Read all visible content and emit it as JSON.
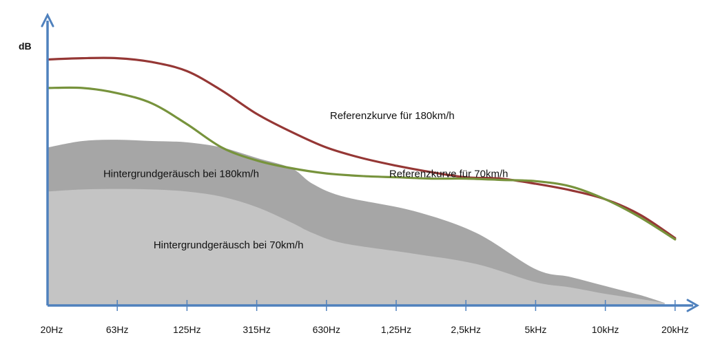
{
  "chart_data": {
    "type": "area",
    "ylabel": "dB",
    "categories": [
      "20Hz",
      "63Hz",
      "125Hz",
      "315Hz",
      "630Hz",
      "1,25Hz",
      "2,5kHz",
      "5kHz",
      "10kHz",
      "20kHz"
    ],
    "colors": {
      "axis": "#4f81bd",
      "area_180": "#a6a6a6",
      "area_70": "#c4c4c4",
      "line_180": "#953735",
      "line_70": "#77933c"
    },
    "series": [
      {
        "name": "Referenzkurve für 180km/h",
        "kind": "line",
        "x": [
          0,
          0.5,
          1,
          1.5,
          2,
          2.5,
          3,
          3.5,
          4,
          4.5,
          5,
          5.5,
          6,
          6.5,
          7,
          7.5,
          8,
          8.5,
          9
        ],
        "y": [
          95,
          95.5,
          95.5,
          94,
          90.5,
          83,
          74,
          67,
          61,
          57,
          54,
          51.5,
          49.5,
          49,
          47,
          44.5,
          41,
          35,
          26
        ]
      },
      {
        "name": "Referenzkurve für 70km/h",
        "kind": "line",
        "x": [
          0,
          0.5,
          1,
          1.5,
          2,
          2.5,
          3,
          3.5,
          4,
          4.5,
          5,
          5.5,
          6,
          6.5,
          7,
          7.5,
          8,
          8.5,
          9
        ],
        "y": [
          84,
          84,
          82,
          78,
          70,
          61,
          56,
          53,
          51,
          50,
          49.5,
          49,
          49,
          48.5,
          48,
          46,
          41,
          34,
          25.5
        ]
      },
      {
        "name": "Hintergrundgeräusch bei 180km/h",
        "kind": "area",
        "x": [
          0,
          0.5,
          1,
          1.5,
          2,
          2.5,
          3,
          3.5,
          3.8,
          4.25,
          5.25,
          6.15,
          7,
          7.5,
          8,
          8.5,
          8.85
        ],
        "y": [
          0,
          0,
          0,
          0,
          0,
          0,
          0,
          0,
          0,
          0,
          0,
          0,
          0,
          0,
          0,
          0,
          0
        ],
        "top": [
          61,
          63.5,
          64,
          63.5,
          63,
          61,
          57,
          53,
          47,
          42,
          36.5,
          28,
          14,
          11,
          7.5,
          4,
          1
        ]
      },
      {
        "name": "Hintergrundgeräusch bei 70km/h",
        "kind": "area",
        "x": [
          0,
          0.5,
          1,
          1.5,
          2,
          2.5,
          3,
          3.5,
          3.8,
          4.25,
          5.25,
          6.15,
          7,
          7.5,
          8,
          8.5,
          8.85
        ],
        "y": [
          0,
          0,
          0,
          0,
          0,
          0,
          0,
          0,
          0,
          0,
          0,
          0,
          0,
          0,
          0,
          0,
          0
        ],
        "top": [
          0,
          0,
          0,
          0,
          0,
          0,
          0,
          0,
          0,
          0,
          0,
          0,
          0,
          0,
          0,
          0,
          0
        ]
      }
    ],
    "area_70_top": [
      44,
      44.8,
      45,
      44.8,
      44,
      42,
      38,
      32,
      28,
      24,
      20,
      16,
      9,
      7,
      4.5,
      2.5,
      1
    ],
    "annotations": [
      {
        "text": "Referenzkurve für 180km/h",
        "x": 4.05,
        "y": 72
      },
      {
        "text": "Referenzkurve für 70km/h",
        "x": 4.9,
        "y": 49.5
      },
      {
        "text": "Hintergrundgeräusch bei 180km/h",
        "x": 0.8,
        "y": 49.5
      },
      {
        "text": "Hintergrundgeräusch bei 70km/h",
        "x": 1.52,
        "y": 22
      }
    ],
    "ylim": [
      0,
      110
    ],
    "xlim": [
      0,
      9.35
    ],
    "grid": false,
    "legend": "none"
  }
}
